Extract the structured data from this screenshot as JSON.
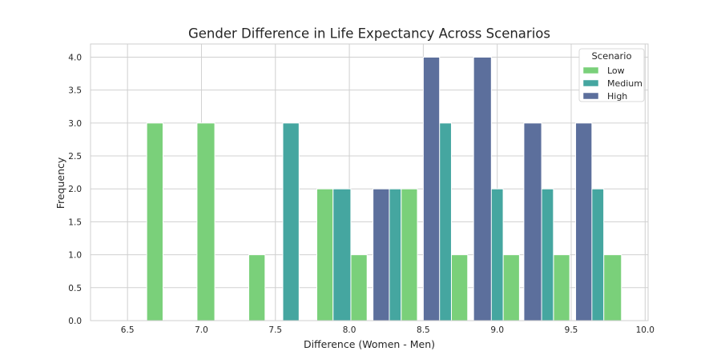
{
  "chart_data": {
    "type": "bar",
    "title": "Gender Difference in Life Expectancy Across Scenarios",
    "xlabel": "Difference (Women - Men)",
    "ylabel": "Frequency",
    "xlim": [
      6.25,
      10.02
    ],
    "ylim": [
      0,
      4.2
    ],
    "xticks": [
      "6.5",
      "7.0",
      "7.5",
      "8.0",
      "8.5",
      "9.0",
      "9.5",
      "10.0"
    ],
    "yticks": [
      "0.0",
      "0.5",
      "1.0",
      "1.5",
      "2.0",
      "2.5",
      "3.0",
      "3.5",
      "4.0"
    ],
    "grid": true,
    "legend": {
      "title": "Scenario",
      "placement": "top-right"
    },
    "series": [
      {
        "name": "Low",
        "color": "#7ad07a",
        "bins": [
          {
            "x0": 6.63,
            "x1": 6.74,
            "value": 3
          },
          {
            "x0": 6.97,
            "x1": 7.09,
            "value": 3
          },
          {
            "x0": 7.32,
            "x1": 7.43,
            "value": 1
          },
          {
            "x0": 7.78,
            "x1": 7.89,
            "value": 2
          },
          {
            "x0": 8.01,
            "x1": 8.12,
            "value": 1
          },
          {
            "x0": 8.35,
            "x1": 8.46,
            "value": 2
          },
          {
            "x0": 8.69,
            "x1": 8.8,
            "value": 1
          },
          {
            "x0": 9.04,
            "x1": 9.15,
            "value": 1
          },
          {
            "x0": 9.38,
            "x1": 9.49,
            "value": 1
          },
          {
            "x0": 9.72,
            "x1": 9.84,
            "value": 1
          }
        ]
      },
      {
        "name": "Medium",
        "color": "#45a6a0",
        "bins": [
          {
            "x0": 7.55,
            "x1": 7.66,
            "value": 3
          },
          {
            "x0": 7.89,
            "x1": 8.01,
            "value": 2
          },
          {
            "x0": 8.23,
            "x1": 8.35,
            "value": 2
          },
          {
            "x0": 8.58,
            "x1": 8.69,
            "value": 3
          },
          {
            "x0": 8.92,
            "x1": 9.04,
            "value": 2
          },
          {
            "x0": 9.26,
            "x1": 9.38,
            "value": 2
          },
          {
            "x0": 9.61,
            "x1": 9.72,
            "value": 2
          }
        ]
      },
      {
        "name": "High",
        "color": "#5c6f9c",
        "bins": [
          {
            "x0": 8.16,
            "x1": 8.27,
            "value": 2
          },
          {
            "x0": 8.5,
            "x1": 8.61,
            "value": 4
          },
          {
            "x0": 8.84,
            "x1": 8.96,
            "value": 4
          },
          {
            "x0": 9.18,
            "x1": 9.3,
            "value": 3
          },
          {
            "x0": 9.53,
            "x1": 9.64,
            "value": 3
          }
        ]
      }
    ]
  }
}
